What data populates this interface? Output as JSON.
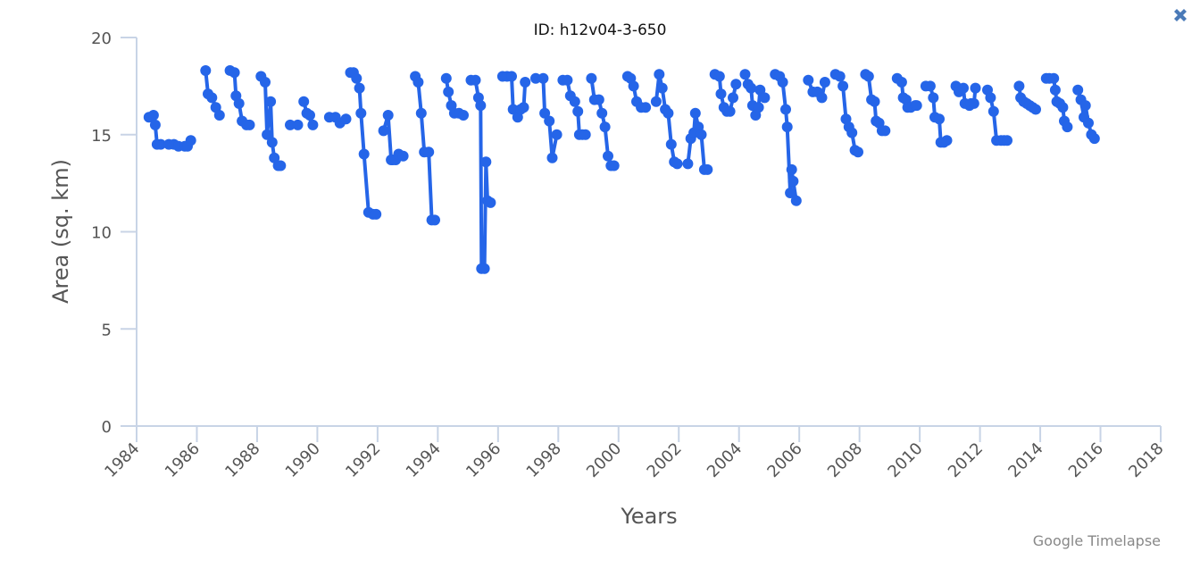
{
  "title": "ID: h12v04-3-650",
  "credit": "Google Timelapse",
  "close_icon": "close-icon",
  "colors": {
    "series": "#2565e8",
    "axis": "#c8d4e6",
    "text": "#555555"
  },
  "chart_data": {
    "type": "line",
    "title": "ID: h12v04-3-650",
    "xlabel": "Years",
    "ylabel": "Area (sq. km)",
    "xlim": [
      1984,
      2018
    ],
    "ylim": [
      0,
      20
    ],
    "xticks": [
      "1984",
      "1986",
      "1988",
      "1990",
      "1992",
      "1994",
      "1996",
      "1998",
      "2000",
      "2002",
      "2004",
      "2006",
      "2008",
      "2010",
      "2012",
      "2014",
      "2016",
      "2018"
    ],
    "yticks": [
      "0",
      "5",
      "10",
      "15",
      "20"
    ],
    "grid": false,
    "legend": null,
    "series": [
      {
        "name": "Area",
        "segments": [
          [
            [
              1984.41,
              15.9
            ],
            [
              1984.56,
              16.0
            ],
            [
              1984.62,
              15.5
            ],
            [
              1984.68,
              14.5
            ],
            [
              1984.8,
              14.5
            ],
            [
              1985.07,
              14.5
            ],
            [
              1985.24,
              14.5
            ],
            [
              1985.39,
              14.4
            ],
            [
              1985.6,
              14.4
            ],
            [
              1985.69,
              14.4
            ],
            [
              1985.8,
              14.7
            ]
          ],
          [
            [
              1986.29,
              18.3
            ],
            [
              1986.37,
              17.1
            ],
            [
              1986.5,
              16.9
            ],
            [
              1986.63,
              16.4
            ],
            [
              1986.75,
              16.0
            ]
          ],
          [
            [
              1987.1,
              18.3
            ],
            [
              1987.25,
              18.2
            ],
            [
              1987.3,
              17.0
            ],
            [
              1987.4,
              16.6
            ],
            [
              1987.5,
              15.7
            ],
            [
              1987.65,
              15.5
            ],
            [
              1987.75,
              15.5
            ]
          ],
          [
            [
              1988.13,
              18.0
            ],
            [
              1988.27,
              17.7
            ],
            [
              1988.33,
              15.0
            ],
            [
              1988.45,
              16.7
            ],
            [
              1988.5,
              14.6
            ],
            [
              1988.57,
              13.8
            ],
            [
              1988.7,
              13.4
            ],
            [
              1988.78,
              13.4
            ]
          ],
          [
            [
              1989.1,
              15.5
            ],
            [
              1989.35,
              15.5
            ]
          ],
          [
            [
              1989.55,
              16.7
            ],
            [
              1989.65,
              16.1
            ],
            [
              1989.85,
              15.5
            ],
            [
              1989.75,
              16.0
            ]
          ],
          [
            [
              1990.4,
              15.9
            ],
            [
              1990.6,
              15.9
            ],
            [
              1990.75,
              15.6
            ],
            [
              1990.95,
              15.8
            ]
          ],
          [
            [
              1991.1,
              18.2
            ],
            [
              1991.2,
              18.2
            ],
            [
              1991.3,
              17.9
            ],
            [
              1991.4,
              17.4
            ],
            [
              1991.45,
              16.1
            ],
            [
              1991.55,
              14.0
            ],
            [
              1991.7,
              11.0
            ],
            [
              1991.85,
              10.9
            ],
            [
              1991.95,
              10.9
            ]
          ],
          [
            [
              1992.2,
              15.2
            ],
            [
              1992.35,
              16.0
            ],
            [
              1992.45,
              13.7
            ],
            [
              1992.5,
              13.7
            ],
            [
              1992.6,
              13.7
            ],
            [
              1992.7,
              14.0
            ],
            [
              1992.85,
              13.9
            ]
          ],
          [
            [
              1993.25,
              18.0
            ],
            [
              1993.35,
              17.7
            ],
            [
              1993.45,
              16.1
            ],
            [
              1993.55,
              14.1
            ],
            [
              1993.7,
              14.1
            ],
            [
              1993.8,
              10.6
            ],
            [
              1993.9,
              10.6
            ]
          ],
          [
            [
              1994.28,
              17.9
            ],
            [
              1994.35,
              17.2
            ],
            [
              1994.45,
              16.5
            ],
            [
              1994.55,
              16.1
            ],
            [
              1994.7,
              16.1
            ],
            [
              1994.85,
              16.0
            ]
          ],
          [
            [
              1995.1,
              17.8
            ],
            [
              1995.25,
              17.8
            ],
            [
              1995.35,
              16.9
            ],
            [
              1995.42,
              16.5
            ],
            [
              1995.45,
              8.1
            ],
            [
              1995.55,
              8.1
            ],
            [
              1995.6,
              13.6
            ],
            [
              1995.65,
              11.6
            ],
            [
              1995.75,
              11.5
            ]
          ],
          [
            [
              1996.15,
              18.0
            ],
            [
              1996.3,
              18.0
            ],
            [
              1996.45,
              18.0
            ],
            [
              1996.5,
              16.3
            ],
            [
              1996.65,
              15.9
            ],
            [
              1996.75,
              16.3
            ],
            [
              1996.85,
              16.4
            ],
            [
              1996.9,
              17.7
            ]
          ],
          [
            [
              1997.25,
              17.9
            ],
            [
              1997.5,
              17.9
            ],
            [
              1997.55,
              16.1
            ],
            [
              1997.7,
              15.7
            ],
            [
              1997.8,
              13.8
            ],
            [
              1997.95,
              15.0
            ]
          ],
          [
            [
              1998.15,
              17.8
            ],
            [
              1998.3,
              17.8
            ],
            [
              1998.4,
              17.0
            ],
            [
              1998.55,
              16.7
            ],
            [
              1998.65,
              16.2
            ],
            [
              1998.7,
              15.0
            ],
            [
              1998.8,
              15.0
            ],
            [
              1998.9,
              15.0
            ]
          ],
          [
            [
              1999.1,
              17.9
            ],
            [
              1999.2,
              16.8
            ],
            [
              1999.35,
              16.8
            ],
            [
              1999.45,
              16.1
            ],
            [
              1999.55,
              15.4
            ],
            [
              1999.65,
              13.9
            ],
            [
              1999.75,
              13.4
            ],
            [
              1999.85,
              13.4
            ]
          ],
          [
            [
              2000.3,
              18.0
            ],
            [
              2000.4,
              17.9
            ],
            [
              2000.5,
              17.5
            ],
            [
              2000.6,
              16.7
            ],
            [
              2000.75,
              16.4
            ],
            [
              2000.9,
              16.4
            ]
          ],
          [
            [
              2001.25,
              16.7
            ],
            [
              2001.35,
              18.1
            ],
            [
              2001.45,
              17.4
            ],
            [
              2001.55,
              16.3
            ],
            [
              2001.65,
              16.1
            ],
            [
              2001.75,
              14.5
            ],
            [
              2001.85,
              13.6
            ],
            [
              2001.95,
              13.5
            ]
          ],
          [
            [
              2002.3,
              13.5
            ],
            [
              2002.4,
              14.8
            ],
            [
              2002.5,
              15.1
            ],
            [
              2002.55,
              16.1
            ],
            [
              2002.65,
              15.4
            ],
            [
              2002.75,
              15.0
            ],
            [
              2002.85,
              13.2
            ],
            [
              2002.95,
              13.2
            ]
          ],
          [
            [
              2003.2,
              18.1
            ],
            [
              2003.35,
              18.0
            ],
            [
              2003.4,
              17.1
            ],
            [
              2003.5,
              16.4
            ],
            [
              2003.6,
              16.2
            ],
            [
              2003.7,
              16.2
            ],
            [
              2003.8,
              16.9
            ],
            [
              2003.9,
              17.6
            ]
          ],
          [
            [
              2004.2,
              18.1
            ],
            [
              2004.3,
              17.6
            ],
            [
              2004.4,
              17.4
            ],
            [
              2004.45,
              16.5
            ],
            [
              2004.55,
              16.0
            ],
            [
              2004.65,
              16.4
            ],
            [
              2004.7,
              17.3
            ],
            [
              2004.85,
              16.9
            ]
          ],
          [
            [
              2005.2,
              18.1
            ],
            [
              2005.35,
              18.0
            ],
            [
              2005.45,
              17.7
            ],
            [
              2005.55,
              16.3
            ],
            [
              2005.6,
              15.4
            ],
            [
              2005.7,
              12.0
            ],
            [
              2005.75,
              13.2
            ],
            [
              2005.8,
              12.6
            ],
            [
              2005.9,
              11.6
            ]
          ],
          [
            [
              2006.3,
              17.8
            ],
            [
              2006.45,
              17.2
            ],
            [
              2006.6,
              17.2
            ],
            [
              2006.75,
              16.9
            ],
            [
              2006.85,
              17.7
            ]
          ],
          [
            [
              2007.2,
              18.1
            ],
            [
              2007.35,
              18.0
            ],
            [
              2007.45,
              17.5
            ],
            [
              2007.55,
              15.8
            ],
            [
              2007.65,
              15.4
            ],
            [
              2007.75,
              15.1
            ],
            [
              2007.85,
              14.2
            ],
            [
              2007.95,
              14.1
            ]
          ],
          [
            [
              2008.2,
              18.1
            ],
            [
              2008.3,
              18.0
            ],
            [
              2008.4,
              16.8
            ],
            [
              2008.5,
              16.7
            ],
            [
              2008.55,
              15.7
            ],
            [
              2008.65,
              15.6
            ],
            [
              2008.75,
              15.2
            ],
            [
              2008.85,
              15.2
            ]
          ],
          [
            [
              2009.25,
              17.9
            ],
            [
              2009.4,
              17.7
            ],
            [
              2009.45,
              16.9
            ],
            [
              2009.55,
              16.8
            ],
            [
              2009.6,
              16.4
            ],
            [
              2009.7,
              16.4
            ],
            [
              2009.85,
              16.5
            ],
            [
              2009.9,
              16.5
            ]
          ],
          [
            [
              2010.2,
              17.5
            ],
            [
              2010.35,
              17.5
            ],
            [
              2010.45,
              16.9
            ],
            [
              2010.5,
              15.9
            ],
            [
              2010.65,
              15.8
            ],
            [
              2010.7,
              14.6
            ],
            [
              2010.8,
              14.6
            ],
            [
              2010.9,
              14.7
            ]
          ],
          [
            [
              2011.2,
              17.5
            ],
            [
              2011.3,
              17.2
            ],
            [
              2011.45,
              17.4
            ],
            [
              2011.5,
              16.6
            ],
            [
              2011.65,
              16.5
            ],
            [
              2011.7,
              16.6
            ],
            [
              2011.8,
              16.6
            ],
            [
              2011.85,
              17.4
            ]
          ],
          [
            [
              2012.25,
              17.3
            ],
            [
              2012.35,
              16.9
            ],
            [
              2012.45,
              16.2
            ],
            [
              2012.55,
              14.7
            ],
            [
              2012.7,
              14.7
            ],
            [
              2012.8,
              14.7
            ],
            [
              2012.9,
              14.7
            ]
          ],
          [
            [
              2013.3,
              17.5
            ],
            [
              2013.35,
              16.9
            ],
            [
              2013.45,
              16.7
            ],
            [
              2013.55,
              16.6
            ],
            [
              2013.65,
              16.5
            ],
            [
              2013.75,
              16.4
            ],
            [
              2013.85,
              16.3
            ]
          ],
          [
            [
              2014.2,
              17.9
            ],
            [
              2014.3,
              17.9
            ],
            [
              2014.45,
              17.9
            ],
            [
              2014.5,
              17.3
            ],
            [
              2014.55,
              16.7
            ],
            [
              2014.65,
              16.6
            ],
            [
              2014.75,
              16.4
            ],
            [
              2014.8,
              15.7
            ],
            [
              2014.9,
              15.4
            ]
          ],
          [
            [
              2015.25,
              17.3
            ],
            [
              2015.35,
              16.8
            ],
            [
              2015.45,
              15.9
            ],
            [
              2015.5,
              16.5
            ],
            [
              2015.6,
              15.6
            ],
            [
              2015.7,
              15.0
            ],
            [
              2015.8,
              14.8
            ]
          ]
        ]
      }
    ]
  }
}
